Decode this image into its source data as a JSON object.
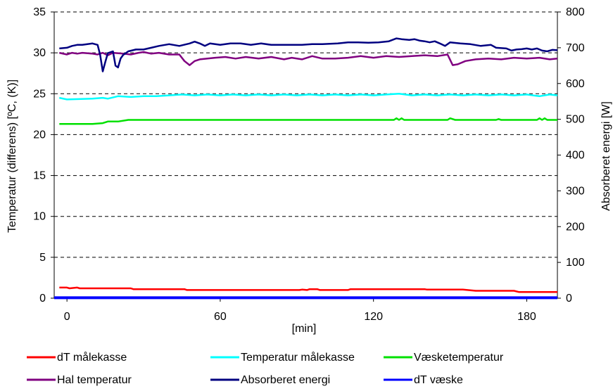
{
  "chart_data": {
    "type": "line",
    "xlabel": "[min]",
    "ylabel_left": "Temperatur (differens) [ºC, (K)]",
    "ylabel_right": "Absorberet energi [W]",
    "x_ticks": [
      0,
      60,
      120,
      180
    ],
    "xlim": [
      -5,
      192
    ],
    "ylim_left": [
      0,
      35
    ],
    "ylim_right": [
      0,
      800
    ],
    "y_ticks_left": [
      0,
      5,
      10,
      15,
      20,
      25,
      30,
      35
    ],
    "y_ticks_right": [
      0,
      100,
      200,
      300,
      400,
      500,
      600,
      700,
      800
    ],
    "grid": "horizontal dashed",
    "legend_position": "bottom",
    "series": [
      {
        "name": "dT målekasse",
        "color": "#ff0000",
        "axis": "left",
        "points": [
          [
            -3,
            1.3
          ],
          [
            0,
            1.3
          ],
          [
            1,
            1.2
          ],
          [
            4,
            1.3
          ],
          [
            5,
            1.2
          ],
          [
            25,
            1.2
          ],
          [
            26,
            1.1
          ],
          [
            46,
            1.1
          ],
          [
            47,
            1.0
          ],
          [
            91,
            1.0
          ],
          [
            92,
            1.05
          ],
          [
            94,
            1.0
          ],
          [
            95,
            1.1
          ],
          [
            98,
            1.1
          ],
          [
            99,
            1.0
          ],
          [
            110,
            1.0
          ],
          [
            111,
            1.1
          ],
          [
            140,
            1.1
          ],
          [
            141,
            1.05
          ],
          [
            155,
            1.05
          ],
          [
            160,
            0.9
          ],
          [
            175,
            0.9
          ],
          [
            177,
            0.75
          ],
          [
            192,
            0.75
          ]
        ]
      },
      {
        "name": "Temperatur målekasse",
        "color": "#00ffff",
        "axis": "left",
        "points": [
          [
            -3,
            24.5
          ],
          [
            0,
            24.3
          ],
          [
            10,
            24.4
          ],
          [
            14,
            24.5
          ],
          [
            16,
            24.4
          ],
          [
            20,
            24.7
          ],
          [
            25,
            24.6
          ],
          [
            30,
            24.7
          ],
          [
            35,
            24.7
          ],
          [
            40,
            24.8
          ],
          [
            45,
            24.9
          ],
          [
            50,
            24.8
          ],
          [
            55,
            24.9
          ],
          [
            60,
            24.8
          ],
          [
            65,
            24.9
          ],
          [
            70,
            24.8
          ],
          [
            75,
            24.9
          ],
          [
            80,
            24.8
          ],
          [
            85,
            24.9
          ],
          [
            90,
            24.8
          ],
          [
            95,
            24.9
          ],
          [
            100,
            24.8
          ],
          [
            105,
            24.9
          ],
          [
            110,
            24.8
          ],
          [
            115,
            24.9
          ],
          [
            120,
            24.8
          ],
          [
            125,
            24.9
          ],
          [
            130,
            25.0
          ],
          [
            135,
            24.8
          ],
          [
            140,
            24.9
          ],
          [
            145,
            24.8
          ],
          [
            150,
            24.9
          ],
          [
            155,
            24.8
          ],
          [
            160,
            24.9
          ],
          [
            165,
            24.8
          ],
          [
            170,
            24.9
          ],
          [
            175,
            24.8
          ],
          [
            180,
            24.9
          ],
          [
            185,
            24.7
          ],
          [
            189,
            24.9
          ],
          [
            192,
            24.8
          ]
        ]
      },
      {
        "name": "Væsketemperatur",
        "color": "#00e000",
        "axis": "left",
        "points": [
          [
            -3,
            21.3
          ],
          [
            10,
            21.3
          ],
          [
            14,
            21.4
          ],
          [
            16,
            21.6
          ],
          [
            20,
            21.6
          ],
          [
            24,
            21.8
          ],
          [
            120,
            21.8
          ],
          [
            128,
            21.8
          ],
          [
            129,
            22.0
          ],
          [
            130,
            21.8
          ],
          [
            131,
            22.0
          ],
          [
            132,
            21.8
          ],
          [
            149,
            21.8
          ],
          [
            150,
            22.0
          ],
          [
            152,
            21.8
          ],
          [
            168,
            21.8
          ],
          [
            169,
            21.9
          ],
          [
            170,
            21.8
          ],
          [
            184,
            21.8
          ],
          [
            185,
            22.0
          ],
          [
            186,
            21.8
          ],
          [
            187,
            22.0
          ],
          [
            188,
            21.8
          ],
          [
            192,
            21.8
          ]
        ]
      },
      {
        "name": "Hal temperatur",
        "color": "#800080",
        "axis": "left",
        "points": [
          [
            -3,
            30.0
          ],
          [
            0,
            29.8
          ],
          [
            2,
            30.0
          ],
          [
            4,
            29.9
          ],
          [
            6,
            30.0
          ],
          [
            10,
            29.9
          ],
          [
            12,
            29.8
          ],
          [
            14,
            30.0
          ],
          [
            16,
            29.7
          ],
          [
            18,
            30.0
          ],
          [
            22,
            29.9
          ],
          [
            25,
            29.8
          ],
          [
            28,
            30.0
          ],
          [
            30,
            30.1
          ],
          [
            33,
            29.9
          ],
          [
            36,
            30.0
          ],
          [
            40,
            29.8
          ],
          [
            44,
            29.8
          ],
          [
            46,
            29.0
          ],
          [
            48,
            28.5
          ],
          [
            50,
            29.0
          ],
          [
            52,
            29.2
          ],
          [
            55,
            29.3
          ],
          [
            58,
            29.4
          ],
          [
            62,
            29.5
          ],
          [
            66,
            29.3
          ],
          [
            70,
            29.5
          ],
          [
            75,
            29.3
          ],
          [
            80,
            29.5
          ],
          [
            85,
            29.2
          ],
          [
            88,
            29.4
          ],
          [
            92,
            29.2
          ],
          [
            96,
            29.6
          ],
          [
            100,
            29.3
          ],
          [
            105,
            29.3
          ],
          [
            110,
            29.4
          ],
          [
            115,
            29.6
          ],
          [
            120,
            29.4
          ],
          [
            125,
            29.6
          ],
          [
            130,
            29.5
          ],
          [
            135,
            29.6
          ],
          [
            140,
            29.7
          ],
          [
            145,
            29.6
          ],
          [
            149,
            29.8
          ],
          [
            151,
            28.5
          ],
          [
            153,
            28.6
          ],
          [
            156,
            29.0
          ],
          [
            160,
            29.2
          ],
          [
            165,
            29.3
          ],
          [
            170,
            29.2
          ],
          [
            175,
            29.4
          ],
          [
            180,
            29.3
          ],
          [
            185,
            29.4
          ],
          [
            189,
            29.2
          ],
          [
            192,
            29.3
          ]
        ]
      },
      {
        "name": "Absorberet energi",
        "color": "#000080",
        "axis": "right",
        "points": [
          [
            -3,
            698
          ],
          [
            0,
            700
          ],
          [
            2,
            705
          ],
          [
            4,
            708
          ],
          [
            6,
            708
          ],
          [
            8,
            710
          ],
          [
            10,
            712
          ],
          [
            12,
            708
          ],
          [
            13,
            680
          ],
          [
            14,
            634
          ],
          [
            15,
            660
          ],
          [
            16,
            685
          ],
          [
            18,
            690
          ],
          [
            19,
            650
          ],
          [
            20,
            645
          ],
          [
            21,
            670
          ],
          [
            22,
            680
          ],
          [
            24,
            690
          ],
          [
            27,
            695
          ],
          [
            30,
            695
          ],
          [
            33,
            700
          ],
          [
            36,
            705
          ],
          [
            40,
            710
          ],
          [
            44,
            705
          ],
          [
            48,
            712
          ],
          [
            50,
            717
          ],
          [
            52,
            712
          ],
          [
            54,
            705
          ],
          [
            56,
            712
          ],
          [
            60,
            708
          ],
          [
            64,
            712
          ],
          [
            68,
            712
          ],
          [
            72,
            708
          ],
          [
            76,
            712
          ],
          [
            80,
            708
          ],
          [
            84,
            708
          ],
          [
            88,
            708
          ],
          [
            92,
            708
          ],
          [
            96,
            710
          ],
          [
            100,
            710
          ],
          [
            106,
            712
          ],
          [
            110,
            715
          ],
          [
            114,
            715
          ],
          [
            118,
            714
          ],
          [
            122,
            715
          ],
          [
            126,
            718
          ],
          [
            129,
            726
          ],
          [
            131,
            724
          ],
          [
            134,
            722
          ],
          [
            136,
            724
          ],
          [
            138,
            720
          ],
          [
            140,
            718
          ],
          [
            142,
            715
          ],
          [
            144,
            718
          ],
          [
            146,
            712
          ],
          [
            148,
            705
          ],
          [
            150,
            715
          ],
          [
            154,
            712
          ],
          [
            158,
            710
          ],
          [
            162,
            705
          ],
          [
            166,
            708
          ],
          [
            168,
            700
          ],
          [
            172,
            698
          ],
          [
            174,
            692
          ],
          [
            176,
            695
          ],
          [
            178,
            696
          ],
          [
            180,
            698
          ],
          [
            182,
            695
          ],
          [
            184,
            698
          ],
          [
            186,
            692
          ],
          [
            188,
            690
          ],
          [
            190,
            694
          ],
          [
            192,
            693
          ]
        ]
      },
      {
        "name": "dT væske",
        "color": "#0000ff",
        "axis": "left",
        "points": [
          [
            -5,
            0.05
          ],
          [
            192,
            0.05
          ]
        ]
      }
    ]
  }
}
